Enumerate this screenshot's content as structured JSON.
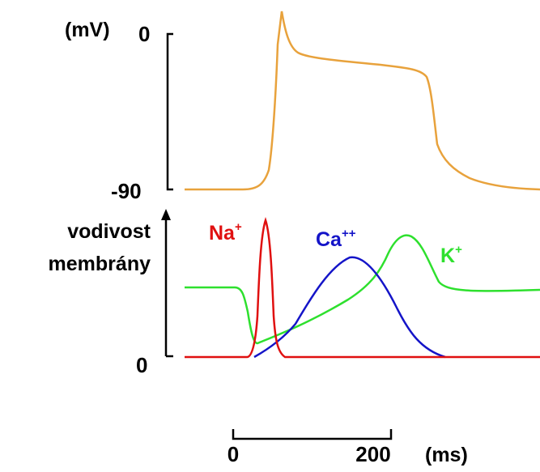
{
  "top_panel": {
    "unit_label": "(mV)",
    "tick_top": "0",
    "tick_bottom": "-90",
    "trace_color": "#e8a23c"
  },
  "bottom_panel": {
    "axis_label_line1": "vodivost",
    "axis_label_line2": "membrány",
    "tick_zero": "0",
    "ions": [
      {
        "label": "Na",
        "charge": "+",
        "color": "#e01010"
      },
      {
        "label": "Ca",
        "charge": "++",
        "color": "#1414c8"
      },
      {
        "label": "K",
        "charge": "+",
        "color": "#2ee02e"
      }
    ]
  },
  "time_scale": {
    "start_label": "0",
    "end_label": "200",
    "unit_label": "(ms)"
  }
}
